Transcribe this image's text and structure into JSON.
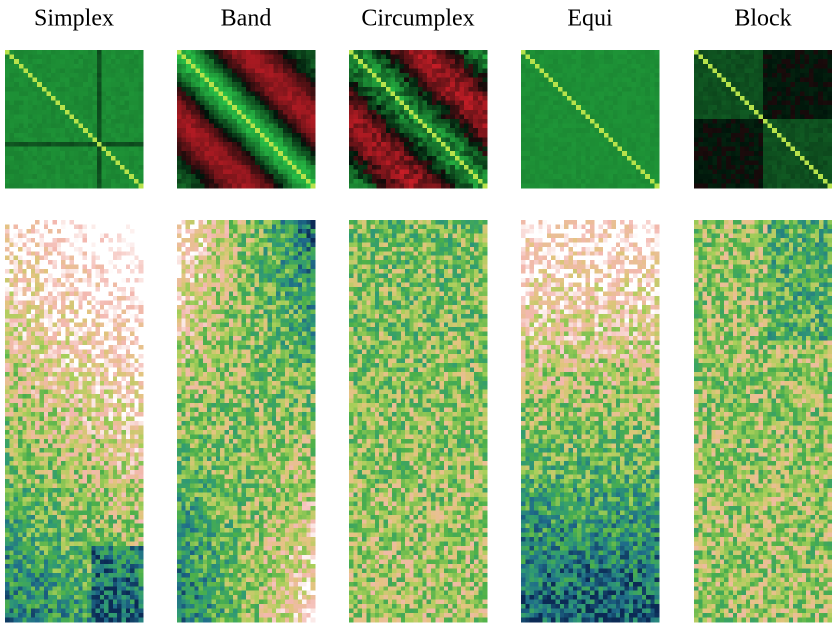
{
  "panels": [
    {
      "title": "Simplex"
    },
    {
      "title": "Band"
    },
    {
      "title": "Circumplex"
    },
    {
      "title": "Equi"
    },
    {
      "title": "Block"
    }
  ]
}
